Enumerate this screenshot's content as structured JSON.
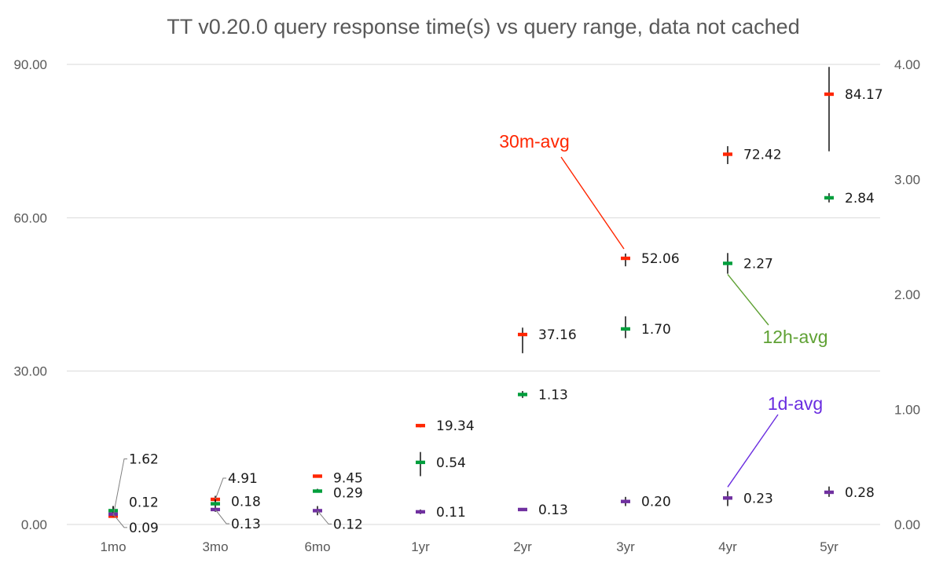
{
  "chart_data": {
    "type": "scatter",
    "title": "TT v0.20.0 query response time(s) vs query range, data not cached",
    "categories": [
      "1mo",
      "3mo",
      "6mo",
      "1yr",
      "2yr",
      "3yr",
      "4yr",
      "5yr"
    ],
    "grid": true,
    "y_left": {
      "range": [
        0,
        90
      ],
      "ticks": [
        "0.00",
        "30.00",
        "60.00",
        "90.00"
      ],
      "tick_values": [
        0,
        30,
        60,
        90
      ]
    },
    "y_right": {
      "range": [
        0,
        4
      ],
      "ticks": [
        "0.00",
        "1.00",
        "2.00",
        "3.00",
        "4.00"
      ],
      "tick_values": [
        0,
        1,
        2,
        3,
        4
      ]
    },
    "series": [
      {
        "name": "30m-avg",
        "axis": "left",
        "color": "#ff2600",
        "values": [
          1.62,
          4.91,
          9.45,
          19.34,
          37.16,
          52.06,
          72.42,
          84.17
        ],
        "labels": [
          "1.62",
          "4.91",
          "9.45",
          "19.34",
          "37.16",
          "52.06",
          "72.42",
          "84.17"
        ],
        "err_low": [
          1.4,
          4.4,
          9.2,
          19.0,
          33.5,
          50.5,
          70.5,
          73.0
        ],
        "err_high": [
          3.6,
          5.6,
          9.7,
          19.6,
          38.5,
          53.0,
          74.0,
          89.5
        ]
      },
      {
        "name": "12h-avg",
        "axis": "right",
        "color": "#009e3c",
        "values": [
          0.12,
          0.18,
          0.29,
          0.54,
          1.13,
          1.7,
          2.27,
          2.84
        ],
        "labels": [
          "0.12",
          "0.18",
          "0.29",
          "0.54",
          "1.13",
          "1.70",
          "2.27",
          "2.84"
        ],
        "err_low": [
          0.08,
          0.15,
          0.28,
          0.42,
          1.1,
          1.62,
          2.18,
          2.8
        ],
        "err_high": [
          0.16,
          0.22,
          0.31,
          0.63,
          1.16,
          1.81,
          2.36,
          2.88
        ]
      },
      {
        "name": "1d-avg",
        "axis": "right",
        "color": "#7030a0",
        "values": [
          0.09,
          0.13,
          0.12,
          0.11,
          0.13,
          0.2,
          0.23,
          0.28
        ],
        "labels": [
          "0.09",
          "0.13",
          "0.12",
          "0.11",
          "0.13",
          "0.20",
          "0.23",
          "0.28"
        ],
        "err_low": [
          0.07,
          0.11,
          0.08,
          0.09,
          0.12,
          0.16,
          0.16,
          0.24
        ],
        "err_high": [
          0.11,
          0.15,
          0.16,
          0.13,
          0.14,
          0.24,
          0.29,
          0.33
        ]
      }
    ],
    "series_label_colors": [
      "#ff2600",
      "#5fa134",
      "#6a2de0"
    ]
  }
}
